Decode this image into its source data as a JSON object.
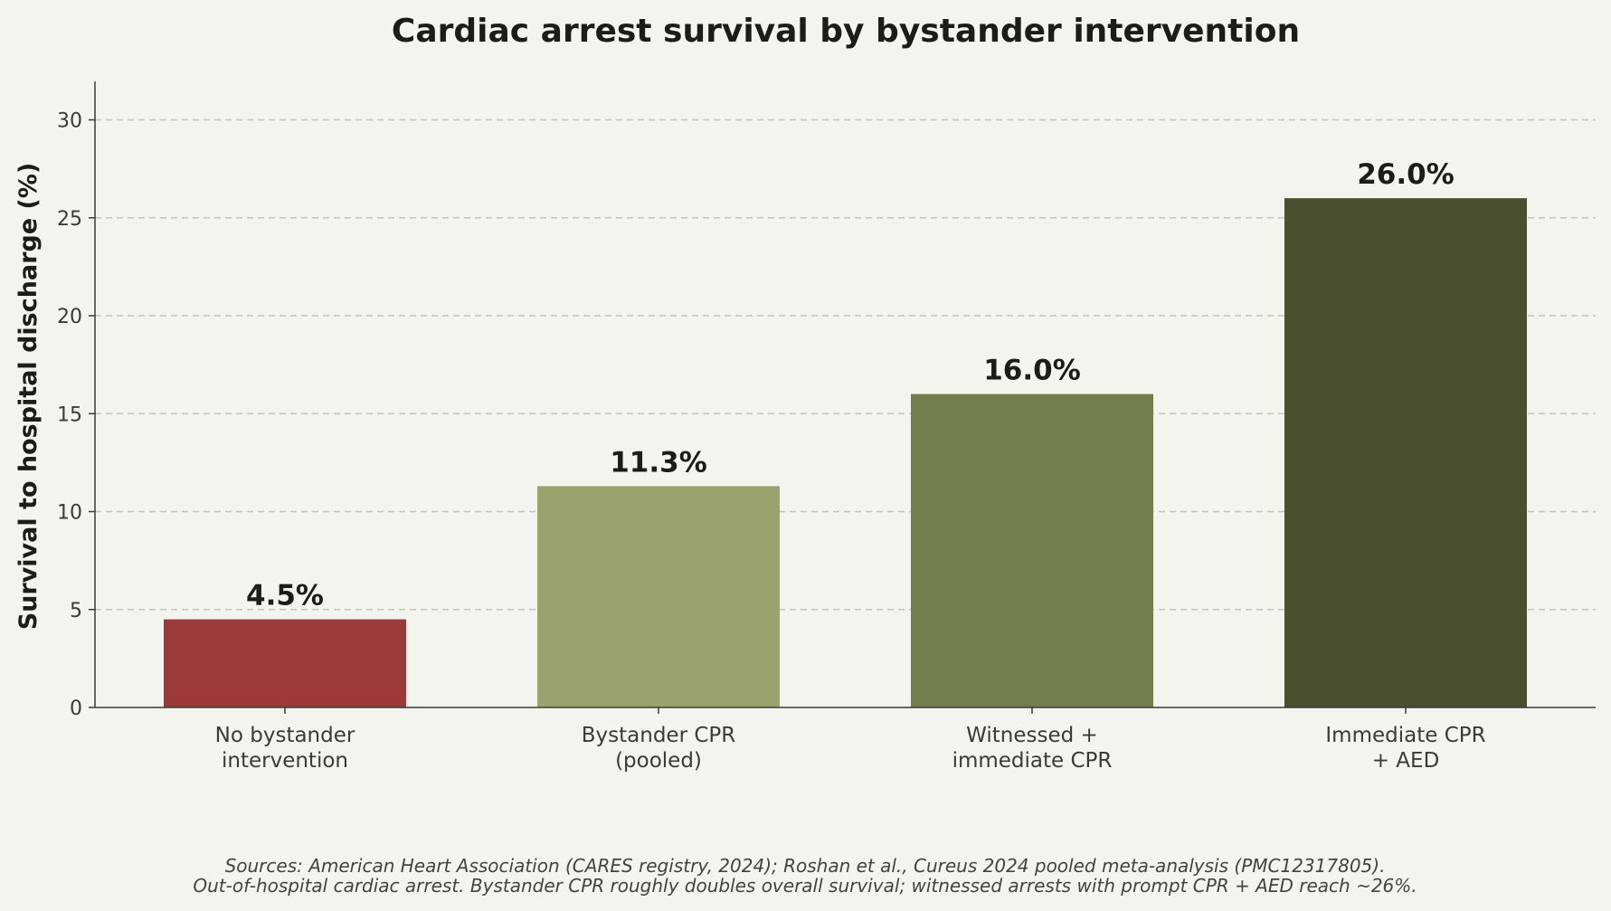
{
  "chart_data": {
    "type": "bar",
    "title": "Cardiac arrest survival by bystander intervention",
    "ylabel": "Survival to hospital discharge (%)",
    "xlabel": "",
    "ylim": [
      0,
      32
    ],
    "yticks": [
      0,
      5,
      10,
      15,
      20,
      25,
      30
    ],
    "grid": "y-dashed",
    "categories": [
      [
        "No bystander",
        "intervention"
      ],
      [
        "Bystander CPR",
        "(pooled)"
      ],
      [
        "Witnessed +",
        "immediate CPR"
      ],
      [
        "Immediate CPR",
        "+ AED"
      ]
    ],
    "values": [
      4.5,
      11.3,
      16.0,
      26.0
    ],
    "value_labels": [
      "4.5%",
      "11.3%",
      "16.0%",
      "26.0%"
    ],
    "colors": [
      "#9b3a3a",
      "#9aa36d",
      "#747d4d",
      "#4a4f2f"
    ],
    "footnote": [
      "Sources: American Heart Association (CARES registry, 2024); Roshan et al., Cureus 2024 pooled meta-analysis (PMC12317805).",
      "Out-of-hospital cardiac arrest. Bystander CPR roughly doubles overall survival; witnessed arrests with prompt CPR + AED reach ~26%."
    ]
  }
}
